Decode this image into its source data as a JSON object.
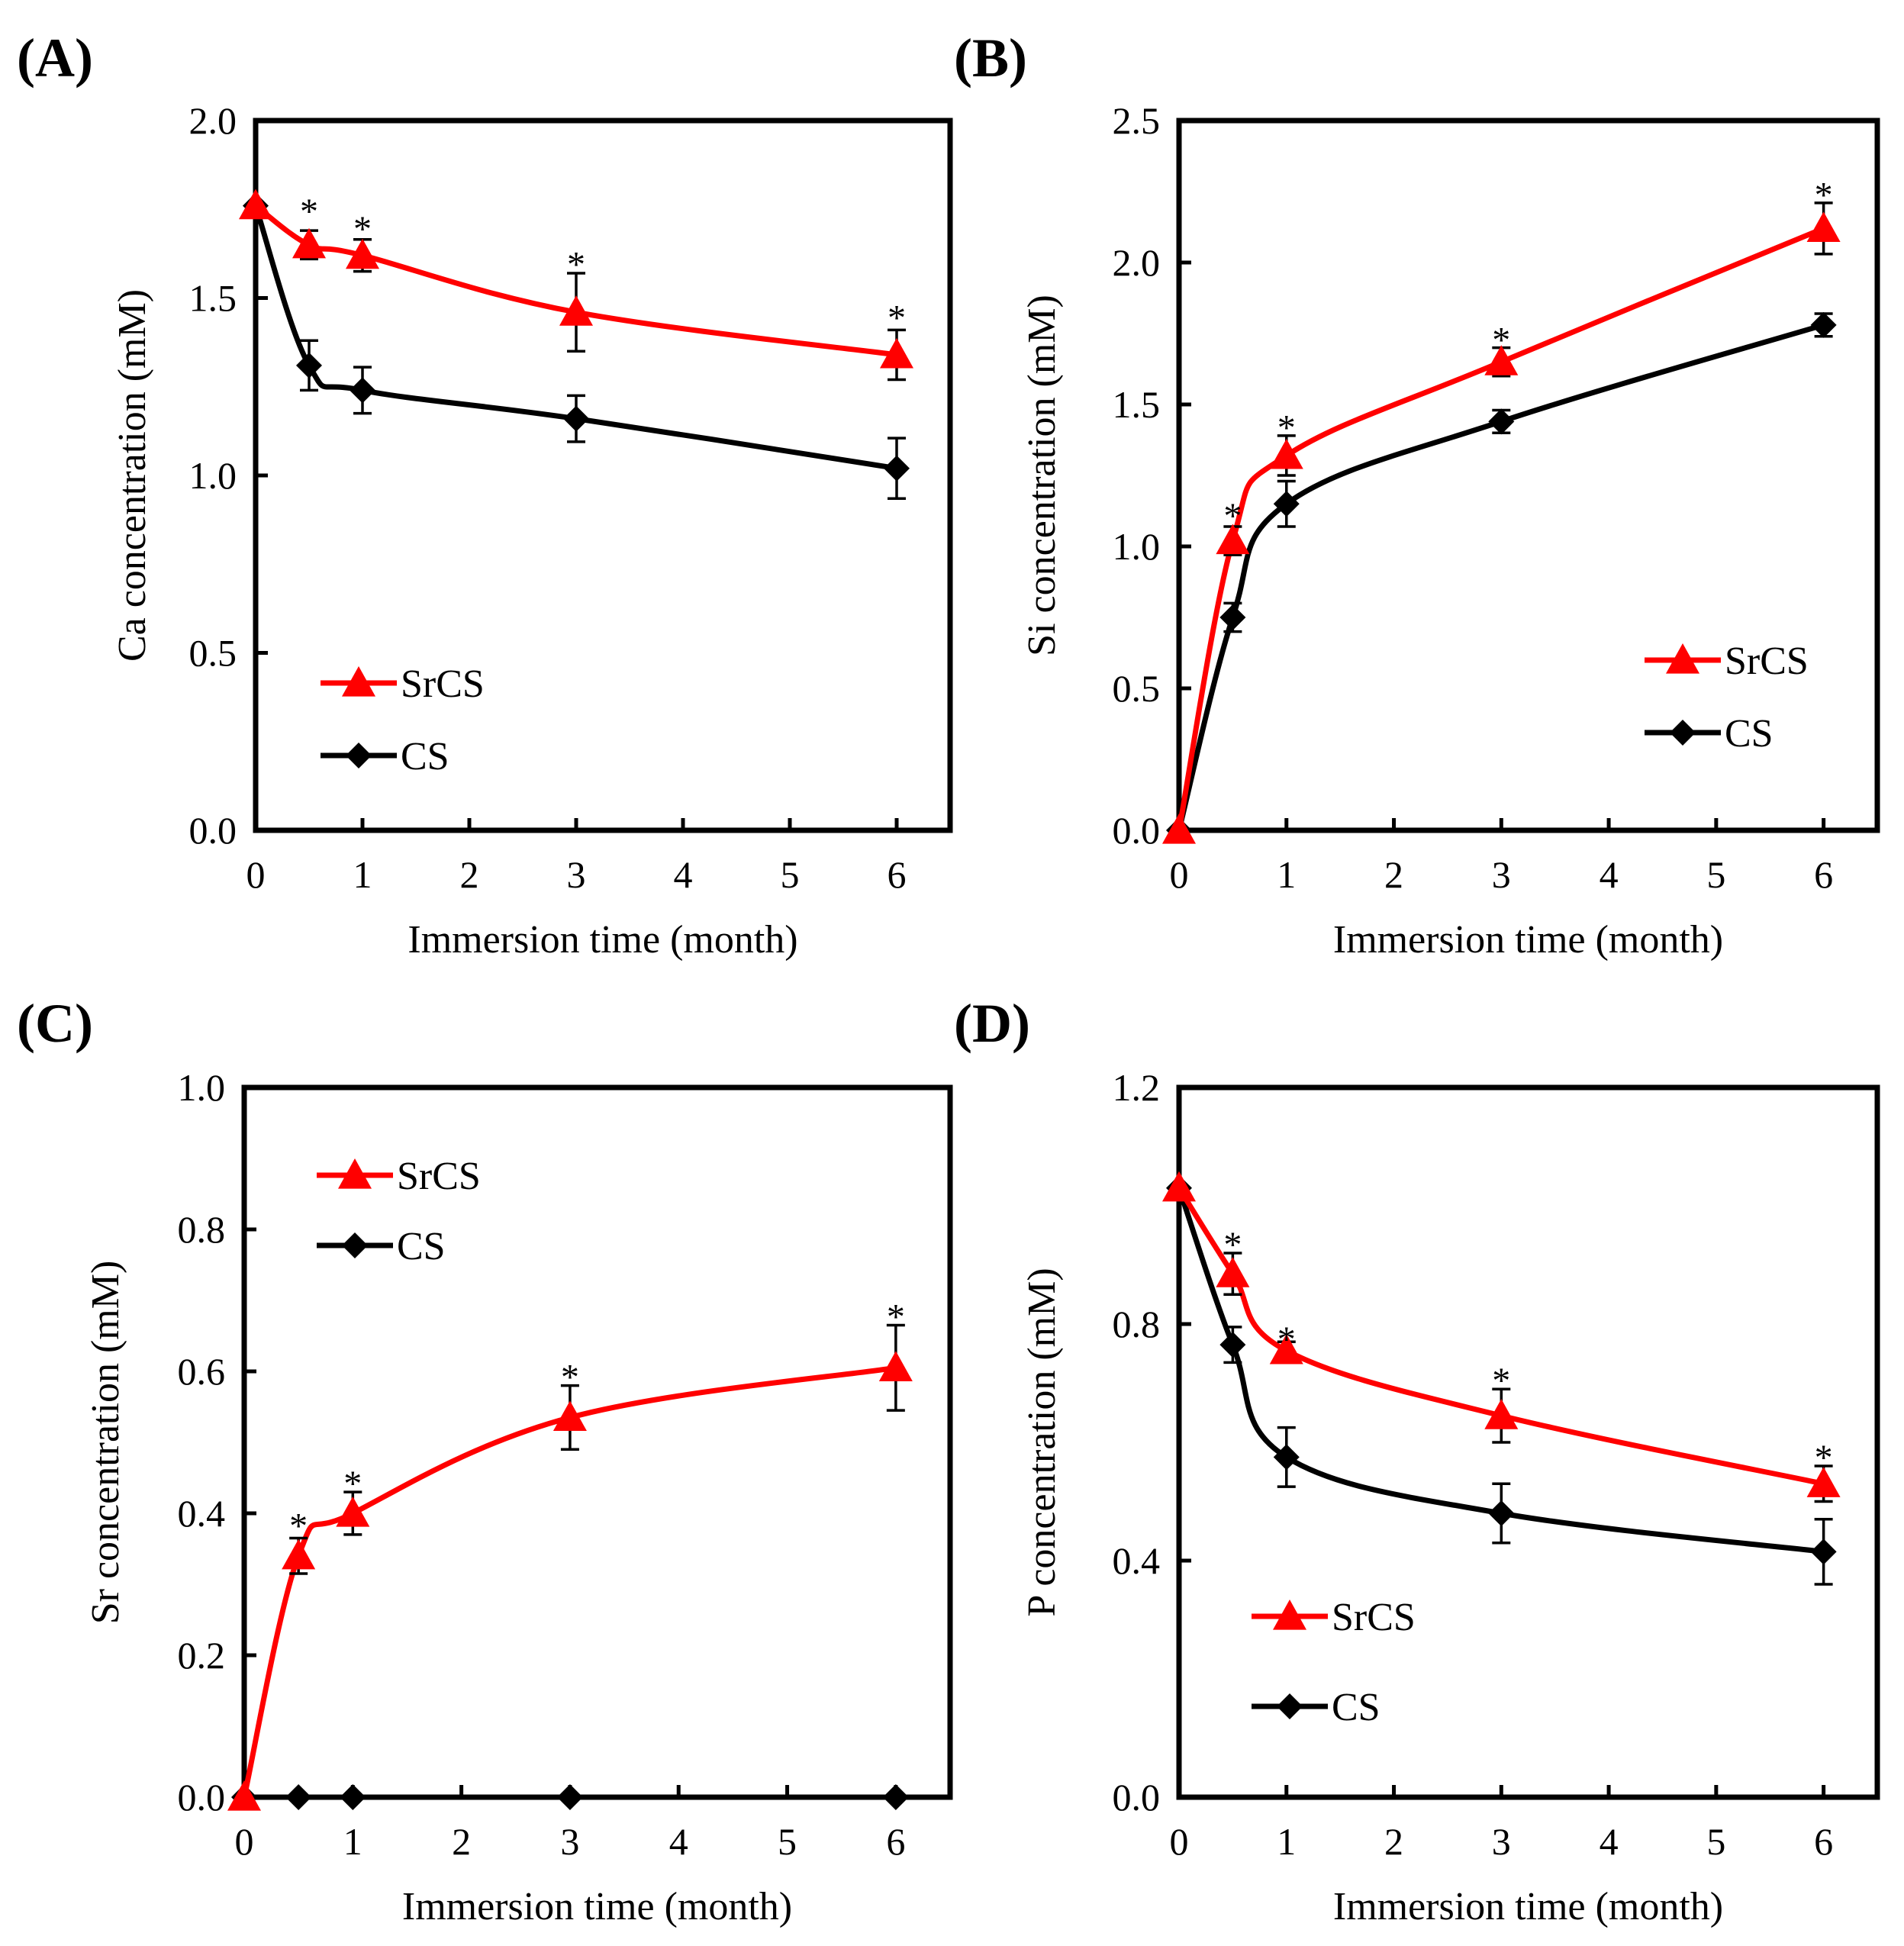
{
  "colors": {
    "SrCS": "#ff0000",
    "CS": "#000000"
  },
  "chart_data": [
    {
      "panel": "(A)",
      "type": "line",
      "xlabel": "Immersion time (month)",
      "ylabel": "Ca concentration (mM)",
      "xlim": [
        0,
        6.5
      ],
      "ylim": [
        0,
        2.0
      ],
      "xticks": [
        "0",
        "1",
        "2",
        "3",
        "4",
        "5",
        "6"
      ],
      "yticks": [
        "0.0",
        "0.5",
        "1.0",
        "1.5",
        "2.0"
      ],
      "legend_position": "bottom-left",
      "series": [
        {
          "name": "SrCS",
          "marker": "triangle",
          "x": [
            0,
            0.5,
            1,
            3,
            6
          ],
          "y": [
            1.76,
            1.65,
            1.62,
            1.46,
            1.34
          ],
          "err": [
            0,
            0.04,
            0.045,
            0.11,
            0.07
          ]
        },
        {
          "name": "CS",
          "marker": "diamond",
          "x": [
            0,
            0.5,
            1,
            3,
            6
          ],
          "y": [
            1.76,
            1.31,
            1.24,
            1.16,
            1.02
          ],
          "err": [
            0,
            0.07,
            0.065,
            0.065,
            0.085
          ]
        }
      ],
      "annotations": [
        {
          "text": "*",
          "x": 0.5,
          "y": 1.77
        },
        {
          "text": "*",
          "x": 1,
          "y": 1.72
        },
        {
          "text": "*",
          "x": 3,
          "y": 1.62
        },
        {
          "text": "*",
          "x": 6,
          "y": 1.47
        }
      ]
    },
    {
      "panel": "(B)",
      "type": "line",
      "xlabel": "Immersion time (month)",
      "ylabel": "Si concentration (mM)",
      "xlim": [
        0,
        6.5
      ],
      "ylim": [
        0,
        2.5
      ],
      "xticks": [
        "0",
        "1",
        "2",
        "3",
        "4",
        "5",
        "6"
      ],
      "yticks": [
        "0.0",
        "0.5",
        "1.0",
        "1.5",
        "2.0",
        "2.5"
      ],
      "legend_position": "center-right",
      "series": [
        {
          "name": "SrCS",
          "marker": "triangle",
          "x": [
            0,
            0.5,
            1,
            3,
            6
          ],
          "y": [
            0,
            1.02,
            1.32,
            1.65,
            2.12
          ],
          "err": [
            0,
            0.05,
            0.07,
            0.05,
            0.09
          ]
        },
        {
          "name": "CS",
          "marker": "diamond",
          "x": [
            0,
            0.5,
            1,
            3,
            6
          ],
          "y": [
            0,
            0.75,
            1.15,
            1.44,
            1.78
          ],
          "err": [
            0,
            0.05,
            0.08,
            0.04,
            0.04
          ]
        }
      ],
      "annotations": [
        {
          "text": "*",
          "x": 0.5,
          "y": 1.14
        },
        {
          "text": "*",
          "x": 1,
          "y": 1.45
        },
        {
          "text": "*",
          "x": 3,
          "y": 1.76
        },
        {
          "text": "*",
          "x": 6,
          "y": 2.27
        }
      ]
    },
    {
      "panel": "(C)",
      "type": "line",
      "xlabel": "Immersion time (month)",
      "ylabel": "Sr concentration (mM)",
      "xlim": [
        0,
        6.5
      ],
      "ylim": [
        0,
        1.0
      ],
      "xticks": [
        "0",
        "1",
        "2",
        "3",
        "4",
        "5",
        "6"
      ],
      "yticks": [
        "0.0",
        "0.2",
        "0.4",
        "0.6",
        "0.8",
        "1.0"
      ],
      "legend_position": "top-left",
      "series": [
        {
          "name": "SrCS",
          "marker": "triangle",
          "x": [
            0,
            0.5,
            1,
            3,
            6
          ],
          "y": [
            0,
            0.34,
            0.4,
            0.535,
            0.605
          ],
          "err": [
            0,
            0.025,
            0.03,
            0.045,
            0.06
          ]
        },
        {
          "name": "CS",
          "marker": "diamond",
          "x": [
            0,
            0.5,
            1,
            3,
            6
          ],
          "y": [
            0,
            0,
            0,
            0,
            0
          ],
          "err": [
            0,
            0,
            0,
            0,
            0
          ]
        }
      ],
      "annotations": [
        {
          "text": "*",
          "x": 0.5,
          "y": 0.395
        },
        {
          "text": "*",
          "x": 1,
          "y": 0.455
        },
        {
          "text": "*",
          "x": 3,
          "y": 0.605
        },
        {
          "text": "*",
          "x": 6,
          "y": 0.69
        }
      ]
    },
    {
      "panel": "(D)",
      "type": "line",
      "xlabel": "Immersion time (month)",
      "ylabel": "P concentration (mM)",
      "xlim": [
        0,
        6.5
      ],
      "ylim": [
        0,
        1.2
      ],
      "xticks": [
        "0",
        "1",
        "2",
        "3",
        "4",
        "5",
        "6"
      ],
      "yticks": [
        "0.0",
        "0.4",
        "0.8",
        "1.2"
      ],
      "legend_position": "bottom-left",
      "series": [
        {
          "name": "SrCS",
          "marker": "triangle",
          "x": [
            0,
            0.5,
            1,
            3,
            6
          ],
          "y": [
            1.03,
            0.885,
            0.755,
            0.645,
            0.53
          ],
          "err": [
            0,
            0.035,
            0.015,
            0.045,
            0.03
          ]
        },
        {
          "name": "CS",
          "marker": "diamond",
          "x": [
            0,
            0.5,
            1,
            3,
            6
          ],
          "y": [
            1.03,
            0.765,
            0.575,
            0.48,
            0.415
          ],
          "err": [
            0,
            0.03,
            0.05,
            0.05,
            0.055
          ]
        }
      ],
      "annotations": [
        {
          "text": "*",
          "x": 0.5,
          "y": 0.95
        },
        {
          "text": "*",
          "x": 1,
          "y": 0.79
        },
        {
          "text": "*",
          "x": 3,
          "y": 0.72
        },
        {
          "text": "*",
          "x": 6,
          "y": 0.59
        }
      ]
    }
  ]
}
